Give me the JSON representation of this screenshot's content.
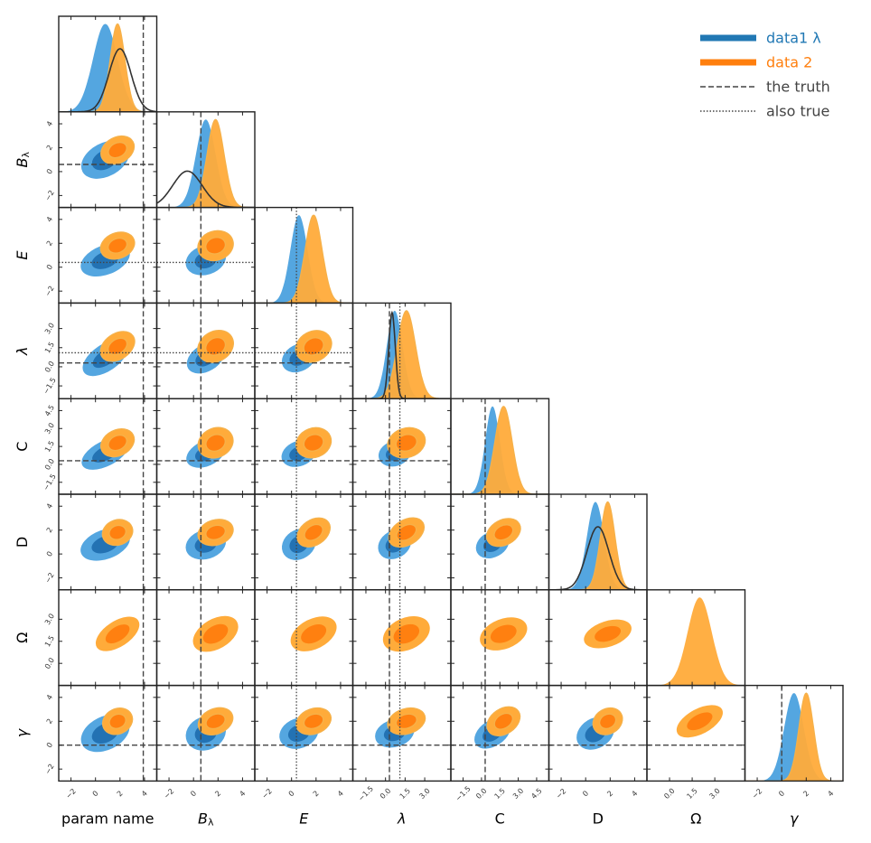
{
  "chart_data": {
    "type": "corner",
    "parameters": [
      {
        "key": "A",
        "label": "param name",
        "italic": false,
        "range": [
          -3,
          5
        ],
        "ticks": [
          "−2",
          "0",
          "2",
          "4"
        ],
        "tick_values": [
          -2,
          0,
          2,
          4
        ]
      },
      {
        "key": "B",
        "label": "B",
        "sub": "λ",
        "italic": true,
        "range": [
          -3,
          5
        ],
        "ticks": [
          "−2",
          "0",
          "2",
          "4"
        ],
        "tick_values": [
          -2,
          0,
          2,
          4
        ]
      },
      {
        "key": "E",
        "label": "E",
        "italic": true,
        "range": [
          -3,
          5
        ],
        "ticks": [
          "−2",
          "0",
          "2",
          "4"
        ],
        "tick_values": [
          -2,
          0,
          2,
          4
        ]
      },
      {
        "key": "L",
        "label": "λ",
        "italic": true,
        "range": [
          -2.5,
          5.0
        ],
        "ticks": [
          "−1.5",
          "0.0",
          "1.5",
          "3.0"
        ],
        "tick_values": [
          -1.5,
          0,
          1.5,
          3.0
        ]
      },
      {
        "key": "C",
        "label": "C",
        "italic": false,
        "range": [
          -2.5,
          5.5
        ],
        "ticks": [
          "−1.5",
          "0.0",
          "1.5",
          "3.0",
          "4.5"
        ],
        "tick_values": [
          -1.5,
          0,
          1.5,
          3.0,
          4.5
        ]
      },
      {
        "key": "D",
        "label": "D",
        "italic": false,
        "range": [
          -3,
          5
        ],
        "ticks": [
          "−2",
          "0",
          "2",
          "4"
        ],
        "tick_values": [
          -2,
          0,
          2,
          4
        ]
      },
      {
        "key": "O",
        "label": "Ω",
        "italic": false,
        "range": [
          -1.5,
          5.0
        ],
        "ticks": [
          "0.0",
          "1.5",
          "3.0"
        ],
        "tick_values": [
          0,
          1.5,
          3.0
        ]
      },
      {
        "key": "G",
        "label": "γ",
        "italic": true,
        "range": [
          -3,
          5
        ],
        "ticks": [
          "−2",
          "0",
          "2",
          "4"
        ],
        "tick_values": [
          -2,
          0,
          2,
          4
        ]
      }
    ],
    "series": [
      {
        "name": "data1 λ",
        "color_outer": "#54a6e0",
        "color_inner": "#2372b3",
        "means": [
          0.8,
          1.0,
          0.6,
          0.7,
          0.9,
          0.8,
          null,
          1.0
        ],
        "sigmas": [
          1.0,
          0.8,
          0.7,
          0.6,
          0.6,
          0.7,
          null,
          0.8
        ]
      },
      {
        "name": "data 2",
        "color_outer": "#ffab3a",
        "color_inner": "#ff8010",
        "means": [
          1.8,
          1.8,
          1.8,
          1.6,
          1.8,
          1.8,
          2.0,
          2.0
        ],
        "sigmas": [
          0.6,
          0.7,
          0.7,
          0.7,
          0.7,
          0.6,
          0.8,
          0.6
        ]
      }
    ],
    "truth_dashed": {
      "name": "the truth",
      "values": [
        3.9,
        0.6,
        null,
        0.3,
        0.3,
        null,
        null,
        0.0
      ]
    },
    "truth_dotted": {
      "name": "also true",
      "values": [
        null,
        null,
        0.4,
        1.1,
        null,
        null,
        null,
        null
      ]
    },
    "extra_curves": [
      {
        "param": 0,
        "mean": 2.0,
        "sigma": 0.9
      },
      {
        "param": 1,
        "mean": -0.5,
        "sigma": 1.2
      },
      {
        "param": 3,
        "mean": 0.5,
        "sigma": 0.25
      },
      {
        "param": 5,
        "mean": 1.0,
        "sigma": 0.9
      }
    ],
    "legend_placement": "top-right"
  },
  "legend": {
    "items": [
      {
        "label": "data1 λ",
        "color": "#2178b4",
        "style": "solid-thick"
      },
      {
        "label": "data 2",
        "color": "#ff7f0e",
        "style": "solid-thick"
      },
      {
        "label": "the truth",
        "color": "#444444",
        "style": "dashed"
      },
      {
        "label": "also true",
        "color": "#444444",
        "style": "dotted"
      }
    ]
  }
}
